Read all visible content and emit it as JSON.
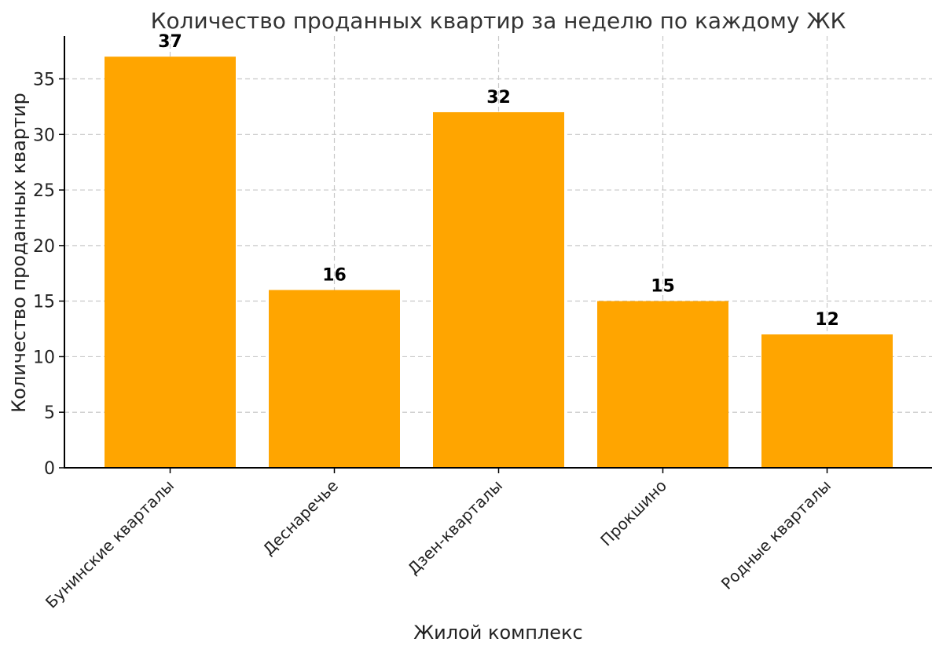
{
  "chart_data": {
    "type": "bar",
    "title": "Количество проданных квартир за неделю по каждому ЖК",
    "xlabel": "Жилой комплекс",
    "ylabel": "Количество проданных квартир",
    "categories": [
      "Бунинские кварталы",
      "Деснаречье",
      "Дзен-кварталы",
      "Прокшино",
      "Родные кварталы"
    ],
    "values": [
      37,
      16,
      32,
      15,
      12
    ],
    "data_labels": [
      "37",
      "16",
      "32",
      "15",
      "12"
    ],
    "yticks": [
      0,
      5,
      10,
      15,
      20,
      25,
      30,
      35
    ],
    "ylim": [
      0,
      38.85
    ],
    "grid": true,
    "bar_color": "#FFA500",
    "x_tick_rotation_deg": 45
  }
}
